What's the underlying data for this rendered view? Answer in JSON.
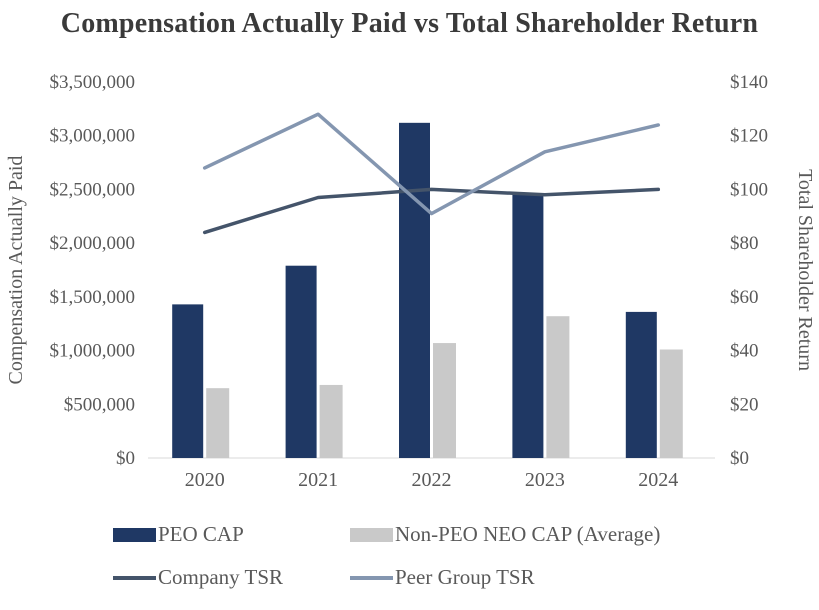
{
  "chart_data": {
    "type": "bar",
    "subtype": "combo-bar-line",
    "title": "Compensation Actually Paid vs Total Shareholder Return",
    "categories": [
      "2020",
      "2021",
      "2022",
      "2023",
      "2024"
    ],
    "bar_series": [
      {
        "name": "PEO CAP",
        "color": "#1f3864",
        "values": [
          1430000,
          1790000,
          3120000,
          2460000,
          1360000
        ]
      },
      {
        "name": "Non-PEO NEO CAP (Average)",
        "color": "#c9c9c9",
        "values": [
          650000,
          680000,
          1070000,
          1320000,
          1010000
        ]
      }
    ],
    "line_series": [
      {
        "name": "Company TSR",
        "color": "#44546a",
        "values": [
          84,
          97,
          100,
          98,
          100
        ]
      },
      {
        "name": "Peer Group TSR",
        "color": "#8496b0",
        "values": [
          108,
          128,
          91,
          114,
          124
        ]
      }
    ],
    "left_axis": {
      "label": "Compensation Actually Paid",
      "min": 0,
      "max": 3500000,
      "step": 500000,
      "tick_labels": [
        "$0",
        "$500,000",
        "$1,000,000",
        "$1,500,000",
        "$2,000,000",
        "$2,500,000",
        "$3,000,000",
        "$3,500,000"
      ]
    },
    "right_axis": {
      "label": "Total Shareholder Return",
      "min": 0,
      "max": 140,
      "step": 20,
      "tick_labels": [
        "$0",
        "$20",
        "$40",
        "$60",
        "$80",
        "$100",
        "$120",
        "$140"
      ]
    },
    "grid": false,
    "legend_position": "bottom"
  }
}
